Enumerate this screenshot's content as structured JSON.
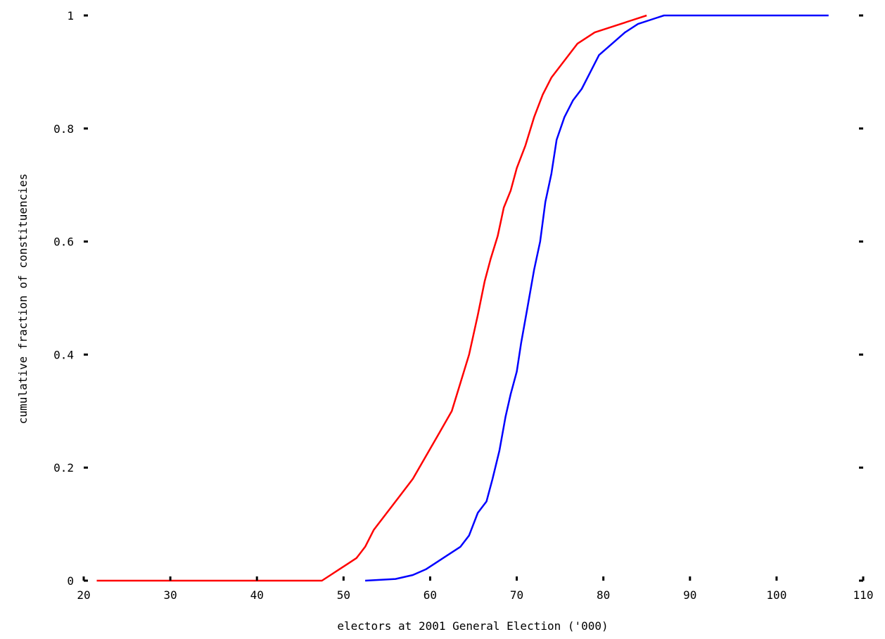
{
  "chart_data": {
    "type": "line",
    "title": "",
    "xlabel": "electors at 2001 General Election ('000)",
    "ylabel": "cumulative fraction of constituencies",
    "xlim": [
      20,
      110
    ],
    "ylim": [
      0,
      1
    ],
    "x_ticks": [
      "20",
      "30",
      "40",
      "50",
      "60",
      "70",
      "80",
      "90",
      "100",
      "110"
    ],
    "y_ticks": [
      "0",
      "0.2",
      "0.4",
      "0.6",
      "0.8",
      "1"
    ],
    "grid": false,
    "legend": "none",
    "series": [
      {
        "color": "#ff0000",
        "points": [
          [
            21.5,
            0
          ],
          [
            47.5,
            0
          ],
          [
            48.5,
            0.01
          ],
          [
            49.5,
            0.02
          ],
          [
            50.5,
            0.03
          ],
          [
            51.5,
            0.04
          ],
          [
            52.5,
            0.06
          ],
          [
            53.5,
            0.09
          ],
          [
            55,
            0.12
          ],
          [
            56.5,
            0.15
          ],
          [
            58,
            0.18
          ],
          [
            59.5,
            0.22
          ],
          [
            61,
            0.26
          ],
          [
            62.5,
            0.3
          ],
          [
            63.5,
            0.35
          ],
          [
            64.5,
            0.4
          ],
          [
            65.5,
            0.47
          ],
          [
            66.3,
            0.53
          ],
          [
            67,
            0.57
          ],
          [
            67.8,
            0.61
          ],
          [
            68.5,
            0.66
          ],
          [
            69.3,
            0.69
          ],
          [
            70,
            0.73
          ],
          [
            71,
            0.77
          ],
          [
            72,
            0.82
          ],
          [
            73,
            0.86
          ],
          [
            74,
            0.89
          ],
          [
            75.5,
            0.92
          ],
          [
            77,
            0.95
          ],
          [
            79,
            0.97
          ],
          [
            81,
            0.98
          ],
          [
            83,
            0.99
          ],
          [
            85,
            1.0
          ]
        ]
      },
      {
        "color": "#0000ff",
        "points": [
          [
            52.5,
            0
          ],
          [
            56,
            0.003
          ],
          [
            58,
            0.01
          ],
          [
            59.5,
            0.02
          ],
          [
            60.5,
            0.03
          ],
          [
            62,
            0.045
          ],
          [
            63.5,
            0.06
          ],
          [
            64.5,
            0.08
          ],
          [
            65.5,
            0.12
          ],
          [
            66.5,
            0.14
          ],
          [
            67.2,
            0.18
          ],
          [
            68,
            0.23
          ],
          [
            68.7,
            0.29
          ],
          [
            69.3,
            0.33
          ],
          [
            70,
            0.37
          ],
          [
            70.5,
            0.42
          ],
          [
            71.2,
            0.48
          ],
          [
            72,
            0.55
          ],
          [
            72.7,
            0.6
          ],
          [
            73.3,
            0.67
          ],
          [
            74,
            0.72
          ],
          [
            74.6,
            0.78
          ],
          [
            75.5,
            0.82
          ],
          [
            76.5,
            0.85
          ],
          [
            77.5,
            0.87
          ],
          [
            78.5,
            0.9
          ],
          [
            79.5,
            0.93
          ],
          [
            81,
            0.95
          ],
          [
            82.5,
            0.97
          ],
          [
            84,
            0.985
          ],
          [
            86,
            0.995
          ],
          [
            87,
            1.0
          ],
          [
            106,
            1.0
          ]
        ]
      }
    ]
  }
}
